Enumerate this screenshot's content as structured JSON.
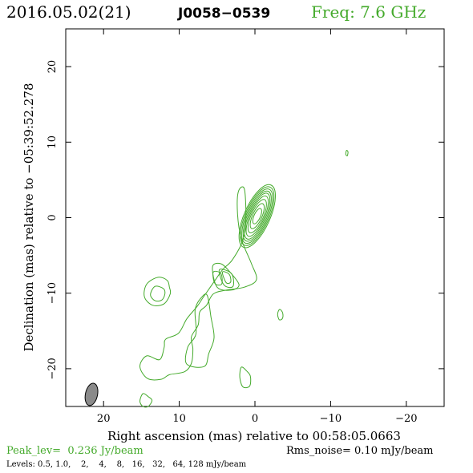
{
  "header": {
    "date_epoch": "2016.05.02(21)",
    "source": "J0058−0539",
    "freq": "Freq: 7.6 GHz"
  },
  "footer": {
    "peak": "Peak_lev=  0.236 Jy/beam",
    "rms": "Rms_noise= 0.10 mJy/beam",
    "levels": "Levels: 0.5, 1.0,    2,    4,    8,   16,   32,   64, 128 mJy/beam"
  },
  "colors": {
    "contour": "#44aa2b",
    "axes": "#000000",
    "beam_fill": "#8a8a8a",
    "accent_text": "#44aa2b"
  },
  "chart_data": {
    "type": "contour",
    "xlabel": "Right ascension (mas) relative to 00:58:05.0663",
    "ylabel": "Declination (mas) relative to −05:39:52.278",
    "xlim": [
      25,
      -25
    ],
    "ylim": [
      -25,
      25
    ],
    "x_ticks": [
      20,
      10,
      0,
      -10,
      -20
    ],
    "x_tick_labels": [
      "20",
      "10",
      "0",
      "−10",
      "−20"
    ],
    "y_ticks": [
      20,
      10,
      0,
      -10,
      -20
    ],
    "y_tick_labels": [
      "20",
      "10",
      "0",
      "−10",
      "−20"
    ],
    "levels_mJy": [
      0.5,
      1.0,
      2,
      4,
      8,
      16,
      32,
      64,
      128
    ],
    "peak_Jy_per_beam": 0.236,
    "rms_mJy_per_beam": 0.1,
    "core": {
      "ra": -0.3,
      "dec": 0.2,
      "pa_deg": -24,
      "ellipses": [
        {
          "a": 1.7,
          "b": 4.5
        },
        {
          "a": 1.55,
          "b": 4.2
        },
        {
          "a": 1.4,
          "b": 3.9
        },
        {
          "a": 1.25,
          "b": 3.6
        },
        {
          "a": 1.1,
          "b": 3.3
        },
        {
          "a": 0.95,
          "b": 2.9
        },
        {
          "a": 0.8,
          "b": 2.4
        },
        {
          "a": 0.62,
          "b": 1.8
        },
        {
          "a": 0.42,
          "b": 1.1
        }
      ]
    },
    "jet_contours": [
      {
        "label": "jet-outer",
        "points": [
          [
            2.2,
            3.4
          ],
          [
            2.3,
            0.5
          ],
          [
            1.8,
            -2.8
          ],
          [
            0.5,
            -6
          ],
          [
            -0.2,
            -8.2
          ],
          [
            1.4,
            -9.2
          ],
          [
            3.8,
            -9.6
          ],
          [
            5.5,
            -10.1
          ],
          [
            6.4,
            -11.6
          ],
          [
            7.3,
            -12.5
          ],
          [
            7.5,
            -14.2
          ],
          [
            8.4,
            -15.8
          ],
          [
            8.2,
            -17.4
          ],
          [
            8.4,
            -19.3
          ],
          [
            9.3,
            -20.4
          ],
          [
            11.3,
            -20.8
          ],
          [
            12.4,
            -21.4
          ],
          [
            14.2,
            -21.3
          ],
          [
            15.2,
            -19.7
          ],
          [
            14.3,
            -18.3
          ],
          [
            12.6,
            -18.8
          ],
          [
            12,
            -17.2
          ],
          [
            11.8,
            -16.1
          ],
          [
            10.1,
            -15.3
          ],
          [
            9,
            -13.4
          ],
          [
            7.6,
            -11.7
          ],
          [
            6.8,
            -10.5
          ],
          [
            5.2,
            -8.2
          ],
          [
            4.2,
            -6.8
          ],
          [
            3,
            -5.6
          ],
          [
            1.6,
            -3
          ],
          [
            1.2,
            -0.3
          ],
          [
            1.4,
            3.8
          ]
        ]
      },
      {
        "label": "jet-inner",
        "points": [
          [
            6.3,
            -10.3
          ],
          [
            5.8,
            -13.2
          ],
          [
            5.4,
            -15.9
          ],
          [
            6.1,
            -18
          ],
          [
            6.7,
            -19.7
          ],
          [
            9,
            -19.4
          ],
          [
            8.9,
            -17.2
          ],
          [
            7.8,
            -15.4
          ],
          [
            7.9,
            -12.2
          ],
          [
            7.1,
            -10.6
          ]
        ]
      },
      {
        "label": "jet-mid-1",
        "points": [
          [
            5.6,
            -6.5
          ],
          [
            5,
            -9.2
          ],
          [
            3.2,
            -9.6
          ],
          [
            2.1,
            -8.9
          ],
          [
            3.3,
            -7.2
          ],
          [
            4.5,
            -6.1
          ]
        ]
      },
      {
        "label": "jet-mid-2",
        "points": [
          [
            4.7,
            -6.9
          ],
          [
            4.1,
            -8.9
          ],
          [
            2.9,
            -9.1
          ],
          [
            3.1,
            -7.4
          ]
        ]
      },
      {
        "label": "jet-mid-3",
        "points": [
          [
            4.3,
            -7.2
          ],
          [
            3.8,
            -8.6
          ],
          [
            3.2,
            -8.5
          ],
          [
            3.4,
            -7.5
          ]
        ]
      },
      {
        "label": "jet-blob",
        "points": [
          [
            5.5,
            -7.2
          ],
          [
            5.3,
            -8.7
          ],
          [
            4.4,
            -8.8
          ],
          [
            4.5,
            -7.4
          ]
        ]
      },
      {
        "label": "knot-ra12-outer",
        "points": [
          [
            11.6,
            -8.3
          ],
          [
            12.8,
            -7.9
          ],
          [
            14.3,
            -8.8
          ],
          [
            14.6,
            -10.5
          ],
          [
            13.5,
            -11.6
          ],
          [
            12,
            -11.4
          ],
          [
            11.2,
            -10.1
          ],
          [
            11.3,
            -9.2
          ]
        ]
      },
      {
        "label": "knot-ra12-inner",
        "points": [
          [
            12.1,
            -9.4
          ],
          [
            13.2,
            -9.1
          ],
          [
            13.8,
            -10.2
          ],
          [
            13.2,
            -11
          ],
          [
            12.3,
            -10.9
          ],
          [
            11.9,
            -10.1
          ]
        ]
      },
      {
        "label": "knot-ra14-bottom",
        "points": [
          [
            14.1,
            -23.7
          ],
          [
            14.8,
            -23.3
          ],
          [
            15.2,
            -24.3
          ],
          [
            14.8,
            -25
          ],
          [
            14.1,
            -25
          ],
          [
            13.6,
            -24.2
          ]
        ]
      },
      {
        "label": "knot-ra1",
        "points": [
          [
            1.1,
            -20.3
          ],
          [
            1.8,
            -19.8
          ],
          [
            2,
            -21.1
          ],
          [
            1.6,
            -22.4
          ],
          [
            0.7,
            -22.3
          ],
          [
            0.6,
            -21
          ]
        ]
      },
      {
        "label": "knot-ra-3",
        "points": [
          [
            -3.5,
            -12.3
          ],
          [
            -3.2,
            -12.2
          ],
          [
            -3,
            -12.8
          ],
          [
            -3.2,
            -13.5
          ],
          [
            -3.6,
            -13.4
          ],
          [
            -3.7,
            -12.8
          ]
        ]
      },
      {
        "label": "knot-ra-12",
        "points": [
          [
            -12,
            8.4
          ],
          [
            -12.1,
            8.9
          ],
          [
            -12.3,
            8.7
          ],
          [
            -12.2,
            8.2
          ]
        ]
      }
    ],
    "beam": {
      "ra": 21.6,
      "dec": -23.4,
      "major_mas": 3.0,
      "minor_mas": 1.6,
      "pa_deg": 12
    }
  }
}
